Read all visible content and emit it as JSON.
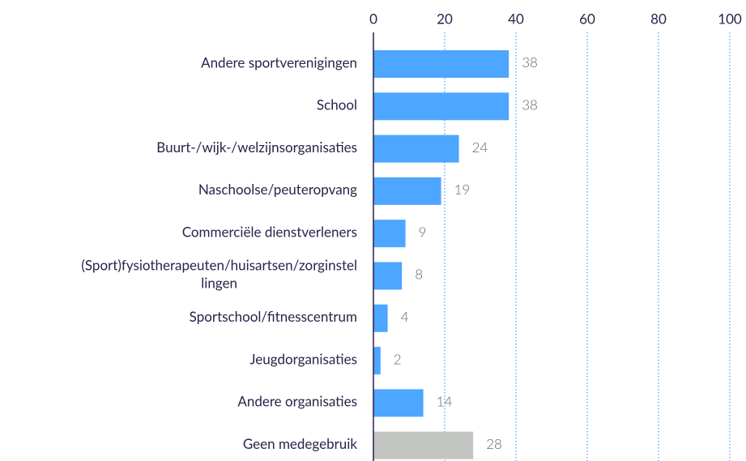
{
  "chart_data": {
    "type": "bar",
    "orientation": "horizontal",
    "categories": [
      "Andere sportverenigingen",
      "School",
      "Buurt-/wijk-/welzijnsorganisaties",
      "Naschoolse/peuteropvang",
      "Commerciële dienstverleners",
      "(Sport)fysiotherapeuten/huisartsen/zorginstellingen",
      "Sportschool/fitnesscentrum",
      "Jeugdorganisaties",
      "Andere organisaties",
      "Geen medegebruik"
    ],
    "values": [
      38,
      38,
      24,
      19,
      9,
      8,
      4,
      2,
      14,
      28
    ],
    "colors": [
      "#4da6ff",
      "#4da6ff",
      "#4da6ff",
      "#4da6ff",
      "#4da6ff",
      "#4da6ff",
      "#4da6ff",
      "#4da6ff",
      "#4da6ff",
      "#c4c6c4"
    ],
    "xlim": [
      0,
      100
    ],
    "xticks": [
      0,
      20,
      40,
      60,
      80,
      100
    ],
    "grid": true
  }
}
